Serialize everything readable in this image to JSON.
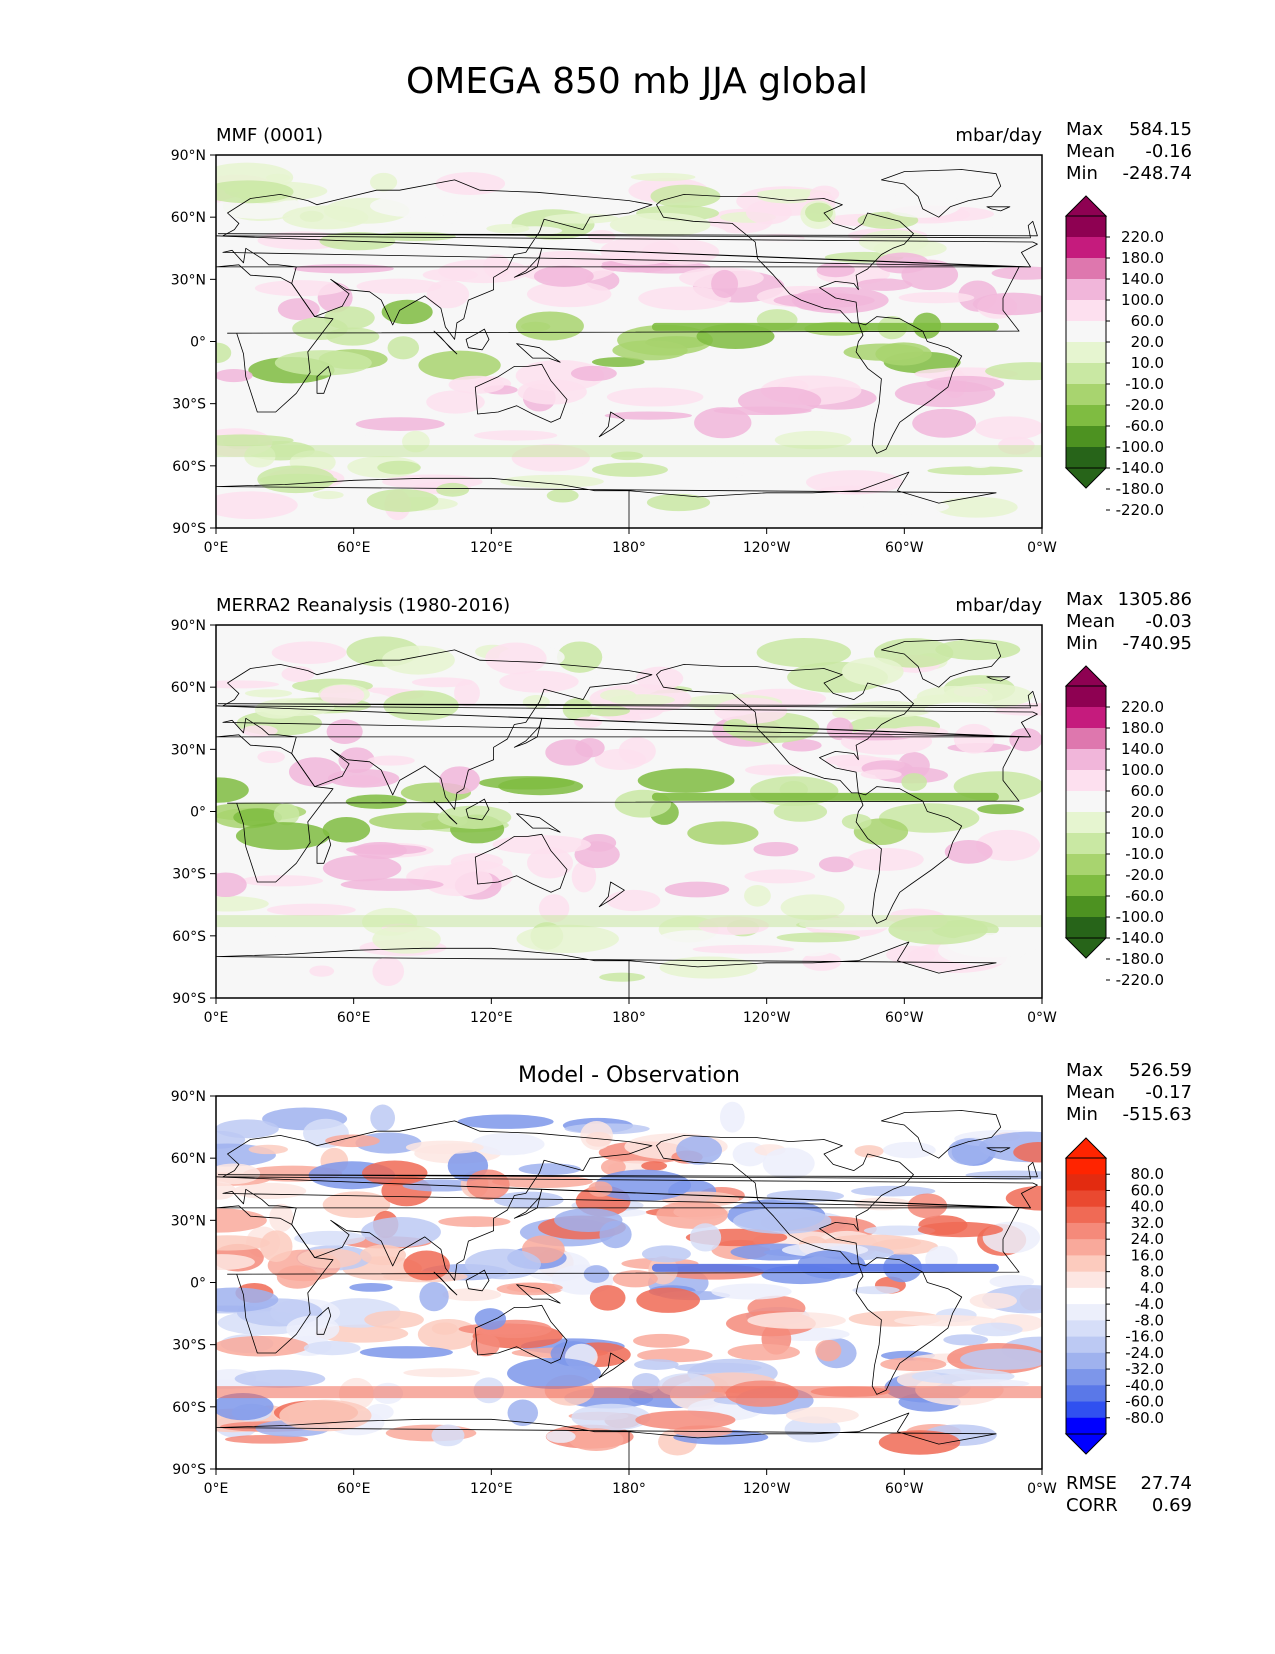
{
  "figure_title": "OMEGA 850 mb JJA global",
  "colormaps": {
    "pink_green": [
      "#276419",
      "#4d9221",
      "#7fbc41",
      "#a8d46f",
      "#c9e8a3",
      "#e6f5d0",
      "#f7f7f7",
      "#fde0ef",
      "#f1b6da",
      "#de77ae",
      "#c51b7d",
      "#8e0152"
    ],
    "red_blue": [
      "#0000ff",
      "#3050f0",
      "#5a78e8",
      "#7d96ea",
      "#9fb2ee",
      "#bcc9f3",
      "#d6def8",
      "#eceffb",
      "#ffffff",
      "#fde6e2",
      "#fccbbe",
      "#f9a99b",
      "#f58a7a",
      "#f06a55",
      "#ea4930",
      "#e32b10",
      "#ff2400"
    ]
  },
  "chart_data": [
    {
      "type": "heatmap",
      "name": "model",
      "left_title": "MMF (0001)",
      "title": "",
      "units": "mbar/day",
      "stats": [
        {
          "label": "Max",
          "value": "584.15"
        },
        {
          "label": "Mean",
          "value": "-0.16"
        },
        {
          "label": "Min",
          "value": "-248.74"
        }
      ],
      "x_ticks": [
        "0°E",
        "60°E",
        "120°E",
        "180°",
        "120°W",
        "60°W",
        "0°W"
      ],
      "y_ticks": [
        "90°N",
        "60°N",
        "30°N",
        "0°",
        "30°S",
        "60°S",
        "90°S"
      ],
      "xlim": [
        0,
        360
      ],
      "ylim": [
        -90,
        90
      ],
      "colorbar_labels": [
        "220.0",
        "180.0",
        "140.0",
        "100.0",
        "60.0",
        "20.0",
        "10.0",
        "-10.0",
        "-20.0",
        "-60.0",
        "-100.0",
        "-140.0",
        "-180.0",
        "-220.0"
      ],
      "colormap": "pink_green",
      "footer": []
    },
    {
      "type": "heatmap",
      "name": "observation",
      "left_title": "MERRA2 Reanalysis (1980-2016)",
      "title": "",
      "units": "mbar/day",
      "stats": [
        {
          "label": "Max",
          "value": "1305.86"
        },
        {
          "label": "Mean",
          "value": "-0.03"
        },
        {
          "label": "Min",
          "value": "-740.95"
        }
      ],
      "x_ticks": [
        "0°E",
        "60°E",
        "120°E",
        "180°",
        "120°W",
        "60°W",
        "0°W"
      ],
      "y_ticks": [
        "90°N",
        "60°N",
        "30°N",
        "0°",
        "30°S",
        "60°S",
        "90°S"
      ],
      "xlim": [
        0,
        360
      ],
      "ylim": [
        -90,
        90
      ],
      "colorbar_labels": [
        "220.0",
        "180.0",
        "140.0",
        "100.0",
        "60.0",
        "20.0",
        "10.0",
        "-10.0",
        "-20.0",
        "-60.0",
        "-100.0",
        "-140.0",
        "-180.0",
        "-220.0"
      ],
      "colormap": "pink_green",
      "footer": []
    },
    {
      "type": "heatmap",
      "name": "difference",
      "left_title": "",
      "title": "Model - Observation",
      "units": "",
      "stats": [
        {
          "label": "Max",
          "value": "526.59"
        },
        {
          "label": "Mean",
          "value": "-0.17"
        },
        {
          "label": "Min",
          "value": "-515.63"
        }
      ],
      "x_ticks": [
        "0°E",
        "60°E",
        "120°E",
        "180°",
        "120°W",
        "60°W",
        "0°W"
      ],
      "y_ticks": [
        "90°N",
        "60°N",
        "30°N",
        "0°",
        "30°S",
        "60°S",
        "90°S"
      ],
      "xlim": [
        0,
        360
      ],
      "ylim": [
        -90,
        90
      ],
      "colorbar_labels": [
        "80.0",
        "60.0",
        "40.0",
        "32.0",
        "24.0",
        "16.0",
        "8.0",
        "4.0",
        "-4.0",
        "-8.0",
        "-16.0",
        "-24.0",
        "-32.0",
        "-40.0",
        "-60.0",
        "-80.0"
      ],
      "colormap": "red_blue",
      "footer": [
        {
          "label": "RMSE",
          "value": "27.74"
        },
        {
          "label": "CORR",
          "value": "0.69"
        }
      ]
    }
  ]
}
